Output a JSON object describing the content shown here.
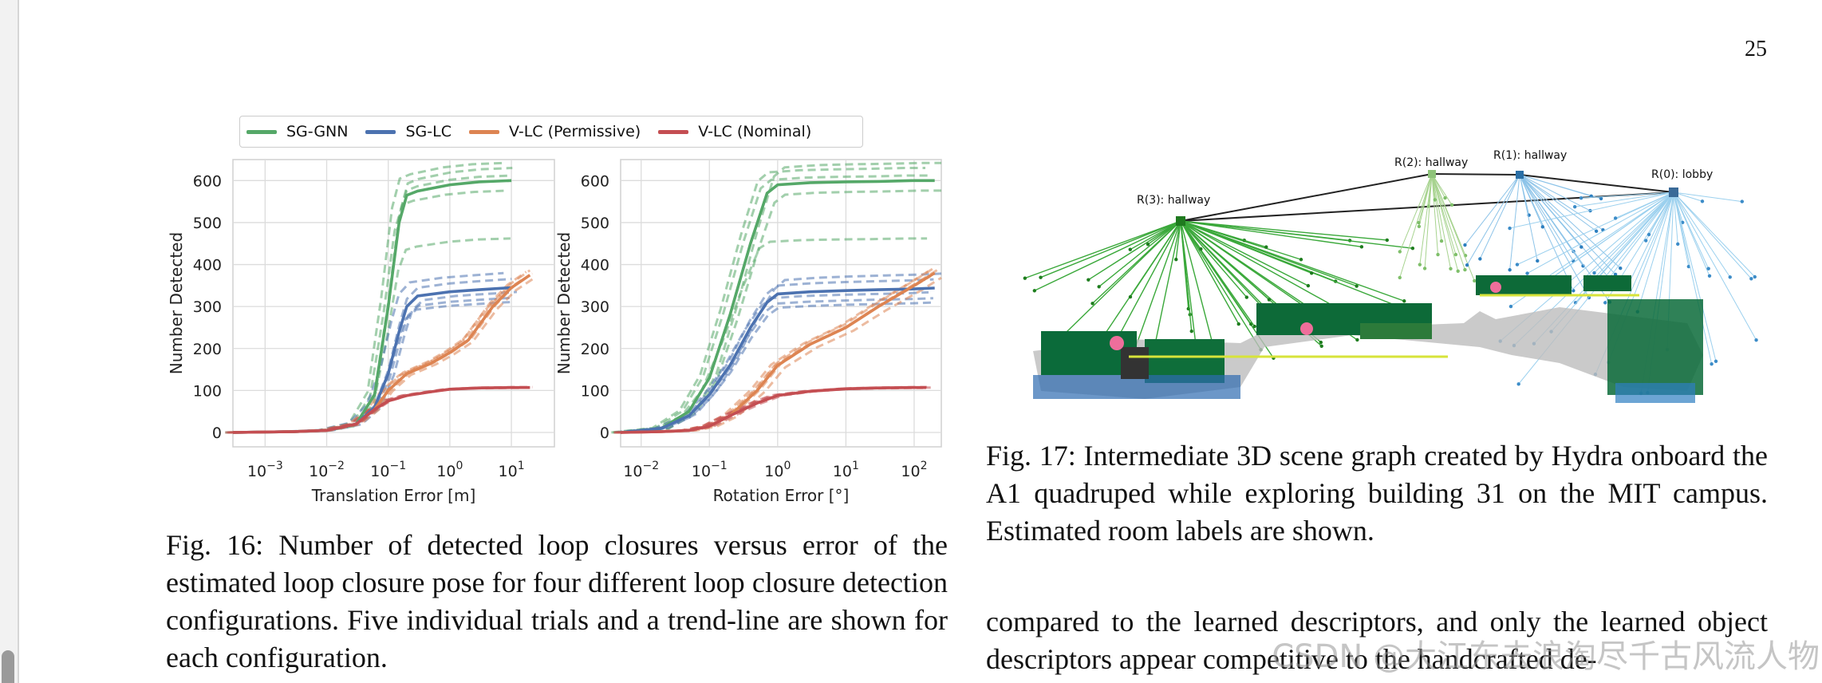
{
  "page_number": "25",
  "legend": [
    {
      "name": "SG-GNN",
      "color": "#55a868"
    },
    {
      "name": "SG-LC",
      "color": "#4c72b0"
    },
    {
      "name": "V-LC (Permissive)",
      "color": "#dd8452"
    },
    {
      "name": "V-LC (Nominal)",
      "color": "#c44e52"
    }
  ],
  "chart_data": [
    {
      "type": "line",
      "xscale": "log",
      "xlabel": "Translation Error [m]",
      "ylabel": "Number Detected",
      "ylim": [
        0,
        650
      ],
      "yticks": [
        "0",
        "100",
        "200",
        "300",
        "400",
        "500",
        "600"
      ],
      "xticks": [
        {
          "base": "10",
          "exp": "−3",
          "value": 0.001
        },
        {
          "base": "10",
          "exp": "−2",
          "value": 0.01
        },
        {
          "base": "10",
          "exp": "−1",
          "value": 0.1
        },
        {
          "base": "10",
          "exp": "0",
          "value": 1
        },
        {
          "base": "10",
          "exp": "1",
          "value": 10
        }
      ],
      "grid": true,
      "series": [
        {
          "name": "SG-GNN",
          "color": "#55a868",
          "x": [
            0.0003,
            0.003,
            0.01,
            0.03,
            0.06,
            0.1,
            0.15,
            0.2,
            0.3,
            1,
            3,
            10
          ],
          "y": [
            0,
            2,
            5,
            20,
            90,
            300,
            500,
            565,
            575,
            590,
            597,
            600
          ]
        },
        {
          "name": "SG-LC",
          "color": "#4c72b0",
          "x": [
            0.0003,
            0.003,
            0.01,
            0.03,
            0.06,
            0.1,
            0.15,
            0.2,
            0.3,
            1,
            3,
            10
          ],
          "y": [
            0,
            2,
            5,
            20,
            60,
            140,
            240,
            300,
            325,
            335,
            340,
            345
          ]
        },
        {
          "name": "V-LC (Permissive)",
          "color": "#dd8452",
          "x": [
            0.0003,
            0.003,
            0.01,
            0.03,
            0.06,
            0.1,
            0.2,
            0.5,
            1,
            2,
            5,
            10,
            20
          ],
          "y": [
            0,
            2,
            5,
            20,
            55,
            100,
            140,
            165,
            190,
            220,
            300,
            345,
            375
          ]
        },
        {
          "name": "V-LC (Nominal)",
          "color": "#c44e52",
          "x": [
            0.0003,
            0.003,
            0.01,
            0.03,
            0.06,
            0.1,
            0.2,
            0.5,
            1,
            3,
            10,
            20
          ],
          "y": [
            0,
            2,
            5,
            20,
            55,
            75,
            88,
            97,
            103,
            106,
            107,
            107
          ]
        }
      ]
    },
    {
      "type": "line",
      "xscale": "log",
      "xlabel": "Rotation Error [°]",
      "ylabel": "Number Detected",
      "ylim": [
        0,
        650
      ],
      "yticks": [
        "0",
        "100",
        "200",
        "300",
        "400",
        "500",
        "600"
      ],
      "xticks": [
        {
          "base": "10",
          "exp": "−2",
          "value": 0.01
        },
        {
          "base": "10",
          "exp": "−1",
          "value": 0.1
        },
        {
          "base": "10",
          "exp": "0",
          "value": 1
        },
        {
          "base": "10",
          "exp": "1",
          "value": 10
        },
        {
          "base": "10",
          "exp": "2",
          "value": 100
        }
      ],
      "grid": true,
      "series": [
        {
          "name": "SG-GNN",
          "color": "#55a868",
          "x": [
            0.005,
            0.02,
            0.05,
            0.1,
            0.2,
            0.4,
            0.7,
            1,
            3,
            10,
            30,
            100,
            200
          ],
          "y": [
            0,
            10,
            50,
            130,
            280,
            450,
            570,
            590,
            595,
            597,
            598,
            600,
            600
          ]
        },
        {
          "name": "SG-LC",
          "color": "#4c72b0",
          "x": [
            0.005,
            0.02,
            0.05,
            0.1,
            0.2,
            0.4,
            0.7,
            1,
            3,
            10,
            30,
            100,
            200
          ],
          "y": [
            0,
            10,
            40,
            90,
            160,
            250,
            310,
            330,
            335,
            338,
            340,
            342,
            344
          ]
        },
        {
          "name": "V-LC (Permissive)",
          "color": "#dd8452",
          "x": [
            0.005,
            0.02,
            0.05,
            0.1,
            0.2,
            0.5,
            1,
            3,
            10,
            30,
            100,
            200
          ],
          "y": [
            0,
            2,
            5,
            15,
            40,
            100,
            160,
            210,
            250,
            300,
            350,
            380
          ]
        },
        {
          "name": "V-LC (Nominal)",
          "color": "#c44e52",
          "x": [
            0.005,
            0.02,
            0.05,
            0.1,
            0.2,
            0.5,
            1,
            3,
            10,
            30,
            100,
            150
          ],
          "y": [
            0,
            2,
            5,
            15,
            40,
            70,
            88,
            98,
            104,
            106,
            107,
            107
          ]
        }
      ]
    }
  ],
  "scene_graph": {
    "labels": [
      "R(3):  hallway",
      "R(2):  hallway",
      "R(1):  hallway",
      "R(0):  lobby"
    ]
  },
  "fig16_caption": "Fig. 16: Number of detected loop closures versus error of the estimated loop closure pose for four different loop closure detection configurations. Five individual trials and a trend-line are shown for each configuration.",
  "fig17_caption": "Fig. 17: Intermediate 3D scene graph created by Hydra onboard the A1 quadruped while exploring building 31 on the MIT campus. Estimated room labels are shown.",
  "body_text": "compared to the learned descriptors, and only the learned object descriptors appear competitive to the handcrafted de-",
  "watermark": "CSDN @大江东去浪淘尽千古风流人物"
}
